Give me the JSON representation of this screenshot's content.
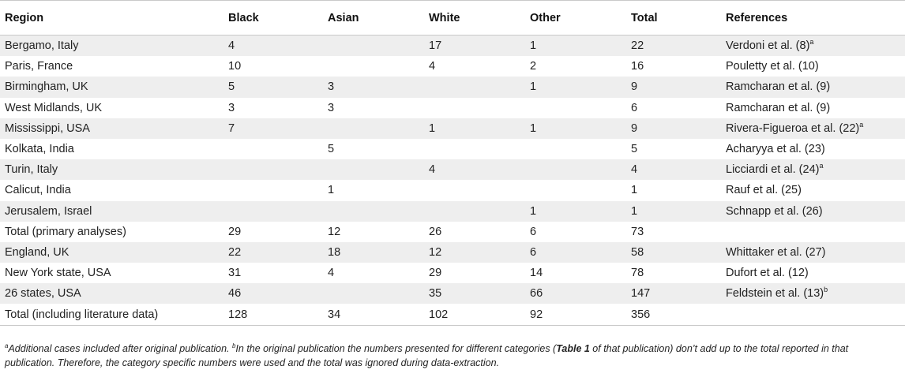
{
  "table": {
    "headers": [
      "Region",
      "Black",
      "Asian",
      "White",
      "Other",
      "Total",
      "References"
    ],
    "rows": [
      {
        "region": "Bergamo, Italy",
        "black": "4",
        "asian": "",
        "white": "17",
        "other": "1",
        "total": "22",
        "ref": "Verdoni et al. (8)",
        "ref_sup": "a"
      },
      {
        "region": "Paris, France",
        "black": "10",
        "asian": "",
        "white": "4",
        "other": "2",
        "total": "16",
        "ref": "Pouletty et al. (10)",
        "ref_sup": ""
      },
      {
        "region": "Birmingham, UK",
        "black": "5",
        "asian": "3",
        "white": "",
        "other": "1",
        "total": "9",
        "ref": "Ramcharan et al. (9)",
        "ref_sup": ""
      },
      {
        "region": "West Midlands, UK",
        "black": "3",
        "asian": "3",
        "white": "",
        "other": "",
        "total": "6",
        "ref": "Ramcharan et al. (9)",
        "ref_sup": ""
      },
      {
        "region": "Mississippi, USA",
        "black": "7",
        "asian": "",
        "white": "1",
        "other": "1",
        "total": "9",
        "ref": "Rivera-Figueroa et al. (22)",
        "ref_sup": "a"
      },
      {
        "region": "Kolkata, India",
        "black": "",
        "asian": "5",
        "white": "",
        "other": "",
        "total": "5",
        "ref": "Acharyya et al. (23)",
        "ref_sup": ""
      },
      {
        "region": "Turin, Italy",
        "black": "",
        "asian": "",
        "white": "4",
        "other": "",
        "total": "4",
        "ref": "Licciardi et al. (24)",
        "ref_sup": "a"
      },
      {
        "region": "Calicut, India",
        "black": "",
        "asian": "1",
        "white": "",
        "other": "",
        "total": "1",
        "ref": "Rauf et al. (25)",
        "ref_sup": ""
      },
      {
        "region": "Jerusalem, Israel",
        "black": "",
        "asian": "",
        "white": "",
        "other": "1",
        "total": "1",
        "ref": "Schnapp et al. (26)",
        "ref_sup": ""
      },
      {
        "region": "Total (primary analyses)",
        "black": "29",
        "asian": "12",
        "white": "26",
        "other": "6",
        "total": "73",
        "ref": "",
        "ref_sup": ""
      },
      {
        "region": "England, UK",
        "black": "22",
        "asian": "18",
        "white": "12",
        "other": "6",
        "total": "58",
        "ref": "Whittaker et al. (27)",
        "ref_sup": ""
      },
      {
        "region": "New York state, USA",
        "black": "31",
        "asian": "4",
        "white": "29",
        "other": "14",
        "total": "78",
        "ref": "Dufort et al. (12)",
        "ref_sup": ""
      },
      {
        "region": "26 states, USA",
        "black": "46",
        "asian": "",
        "white": "35",
        "other": "66",
        "total": "147",
        "ref": "Feldstein et al. (13)",
        "ref_sup": "b"
      },
      {
        "region": "Total (including literature data)",
        "black": "128",
        "asian": "34",
        "white": "102",
        "other": "92",
        "total": "356",
        "ref": "",
        "ref_sup": ""
      }
    ]
  },
  "footnote": {
    "a_mark": "a",
    "a_text": "Additional cases included after original publication. ",
    "b_mark": "b",
    "b_text_1": "In the original publication the numbers presented for different categories (",
    "b_bold": "Table 1",
    "b_text_2": " of that publication) don’t add up to the total reported in that publication. Therefore, the category specific numbers were used and the total was ignored during data-extraction."
  }
}
